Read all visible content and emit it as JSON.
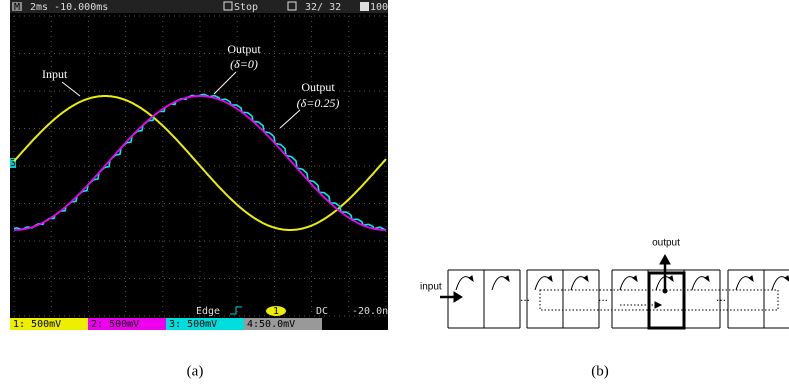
{
  "panel_a": {
    "caption": "(a)",
    "status_bar": {
      "menu": "M",
      "timebase": "2ms -10.000ms",
      "run_state": "Stop",
      "acquisitions": "32/ 32",
      "zoom": "100"
    },
    "channel_marker": "3",
    "annotations": {
      "input": "Input",
      "output_ideal": {
        "label": "Output",
        "param": "(δ=0)"
      },
      "output_offset": {
        "label": "Output",
        "param": "(δ=0.25)"
      }
    },
    "trigger": {
      "mode": "Edge",
      "source": "1",
      "coupling": "DC",
      "level": "-20.0n"
    },
    "channels": [
      "1: 500mV",
      "2: 500mV",
      "3: 500mV",
      "4:50.0mV"
    ]
  },
  "panel_b": {
    "caption": "(b)",
    "input_label": "input",
    "output_label": "output",
    "ellipses": [
      "...",
      "...",
      "..."
    ]
  }
}
